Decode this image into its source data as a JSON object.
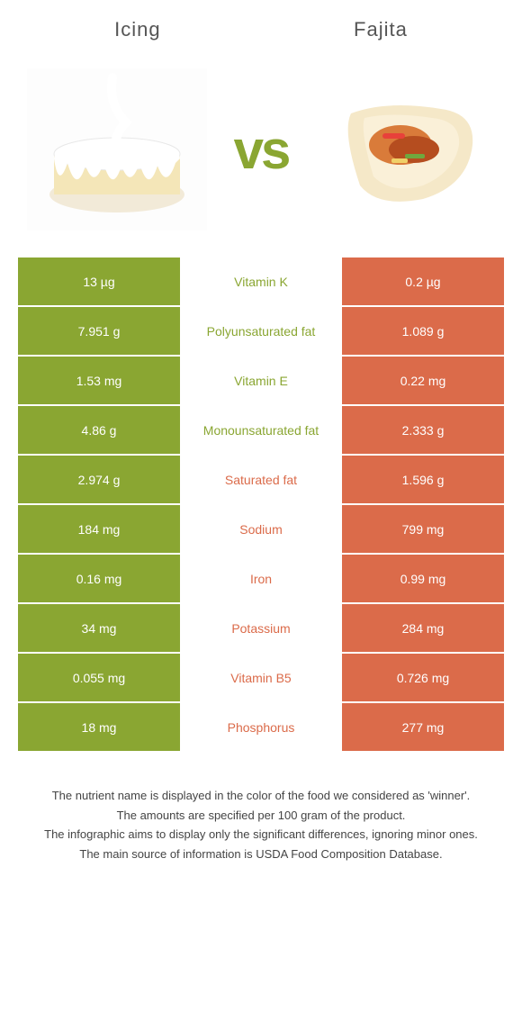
{
  "header": {
    "left_title": "Icing",
    "right_title": "Fajita"
  },
  "vs_text": "vs",
  "colors": {
    "left": "#8aa632",
    "right": "#db6b4a",
    "background": "#ffffff"
  },
  "rows": [
    {
      "left": "13 µg",
      "label": "Vitamin K",
      "right": "0.2 µg",
      "winner": "left"
    },
    {
      "left": "7.951 g",
      "label": "Polyunsaturated fat",
      "right": "1.089 g",
      "winner": "left"
    },
    {
      "left": "1.53 mg",
      "label": "Vitamin E",
      "right": "0.22 mg",
      "winner": "left"
    },
    {
      "left": "4.86 g",
      "label": "Monounsaturated fat",
      "right": "2.333 g",
      "winner": "left"
    },
    {
      "left": "2.974 g",
      "label": "Saturated fat",
      "right": "1.596 g",
      "winner": "right"
    },
    {
      "left": "184 mg",
      "label": "Sodium",
      "right": "799 mg",
      "winner": "right"
    },
    {
      "left": "0.16 mg",
      "label": "Iron",
      "right": "0.99 mg",
      "winner": "right"
    },
    {
      "left": "34 mg",
      "label": "Potassium",
      "right": "284 mg",
      "winner": "right"
    },
    {
      "left": "0.055 mg",
      "label": "Vitamin B5",
      "right": "0.726 mg",
      "winner": "right"
    },
    {
      "left": "18 mg",
      "label": "Phosphorus",
      "right": "277 mg",
      "winner": "right"
    }
  ],
  "footer": {
    "line1": "The nutrient name is displayed in the color of the food we considered as 'winner'.",
    "line2": "The amounts are specified per 100 gram of the product.",
    "line3": "The infographic aims to display only the significant differences, ignoring minor ones.",
    "line4": "The main source of information is USDA Food Composition Database."
  }
}
